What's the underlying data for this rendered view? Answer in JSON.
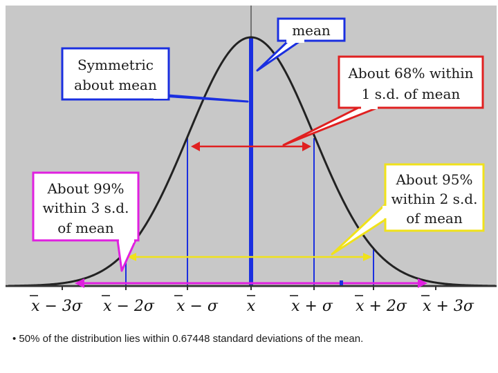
{
  "colors": {
    "plot_background": "#c8c8c8",
    "curve": "#222222",
    "blue": "#1a2fe0",
    "red": "#e02020",
    "yellow": "#f0e21a",
    "magenta": "#e020e0"
  },
  "callouts": {
    "mean": "mean",
    "symmetric_line1": "Symmetric",
    "symmetric_line2": "about mean",
    "sd1_line1": "About 68% within",
    "sd1_line2": "1 s.d. of mean",
    "sd2_line1": "About 95%",
    "sd2_line2": "within 2 s.d.",
    "sd2_line3": "of mean",
    "sd3_line1": "About 99%",
    "sd3_line2": "within 3 s.d.",
    "sd3_line3": "of mean"
  },
  "axis_labels": [
    "x − 3σ",
    "x − 2σ",
    "x − σ",
    "x",
    "x + σ",
    "x + 2σ",
    "x + 3σ"
  ],
  "caption": "• 50% of the distribution lies within 0.67448 standard deviations of the mean."
}
